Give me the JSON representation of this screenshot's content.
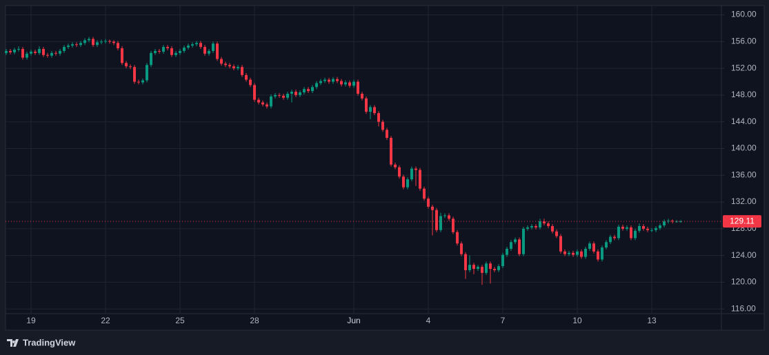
{
  "chart_data": {
    "type": "candlestick",
    "watermark": "TradingView",
    "categories": [
      null,
      null,
      null,
      null,
      null,
      null,
      "19",
      null,
      null,
      null,
      null,
      null,
      null,
      null,
      null,
      null,
      null,
      null,
      null,
      null,
      null,
      null,
      null,
      null,
      "22",
      null,
      null,
      null,
      null,
      null,
      null,
      null,
      null,
      null,
      null,
      null,
      null,
      null,
      null,
      null,
      null,
      null,
      "25",
      null,
      null,
      null,
      null,
      null,
      null,
      null,
      null,
      null,
      null,
      null,
      null,
      null,
      null,
      null,
      null,
      null,
      "28",
      null,
      null,
      null,
      null,
      null,
      null,
      null,
      null,
      null,
      null,
      null,
      null,
      null,
      null,
      null,
      null,
      null,
      null,
      null,
      null,
      null,
      null,
      null,
      "Jun",
      null,
      null,
      null,
      null,
      null,
      null,
      null,
      null,
      null,
      null,
      null,
      null,
      null,
      null,
      null,
      null,
      null,
      "4",
      null,
      null,
      null,
      null,
      null,
      null,
      null,
      null,
      null,
      null,
      null,
      null,
      null,
      null,
      null,
      null,
      null,
      "7",
      null,
      null,
      null,
      null,
      null,
      null,
      null,
      null,
      null,
      null,
      null,
      null,
      null,
      null,
      null,
      null,
      null,
      "10",
      null,
      null,
      null,
      null,
      null,
      null,
      null,
      null,
      null,
      null,
      null,
      null,
      null,
      null,
      null,
      null,
      null,
      "13",
      null,
      null,
      null,
      null,
      null,
      null,
      null
    ],
    "series": [
      {
        "up_color": "#089981",
        "down_color": "#f23645",
        "open": [
          154.3,
          154.6,
          154.4,
          154.8,
          154.9,
          153.6,
          154.2,
          154.5,
          154.3,
          154.9,
          154.0,
          153.9,
          154.3,
          154.2,
          154.6,
          155.2,
          155.4,
          155.6,
          155.5,
          155.8,
          156.2,
          156.4,
          155.5,
          155.9,
          156.0,
          156.1,
          156.0,
          155.8,
          155.0,
          152.8,
          152.3,
          152.2,
          150.0,
          149.9,
          150.2,
          152.5,
          154.3,
          154.6,
          154.5,
          155.2,
          155.0,
          154.0,
          154.3,
          154.6,
          155.1,
          155.4,
          155.6,
          155.8,
          155.2,
          154.2,
          154.6,
          155.7,
          153.4,
          152.7,
          152.5,
          152.3,
          152.0,
          152.2,
          151.0,
          150.3,
          149.5,
          147.3,
          146.9,
          146.6,
          146.3,
          147.8,
          148.0,
          147.9,
          147.6,
          148.2,
          148.5,
          148.0,
          148.4,
          148.9,
          148.6,
          149.2,
          149.8,
          150.1,
          150.3,
          150.0,
          150.4,
          150.1,
          149.6,
          149.9,
          149.4,
          150.0,
          148.2,
          147.5,
          145.5,
          146.2,
          145.3,
          144.0,
          142.8,
          141.6,
          137.6,
          137.2,
          135.8,
          134.2,
          135.4,
          137.0,
          136.8,
          134.0,
          132.5,
          131.3,
          130.8,
          127.8,
          129.9,
          130.0,
          129.5,
          127.5,
          125.8,
          124.2,
          121.8,
          122.6,
          122.0,
          122.3,
          121.4,
          122.8,
          122.0,
          121.8,
          122.4,
          124.1,
          125.0,
          126.0,
          126.4,
          124.2,
          128.0,
          128.2,
          128.4,
          128.2,
          129.1,
          128.8,
          128.4,
          127.6,
          126.9,
          124.6,
          124.2,
          124.4,
          124.1,
          124.6,
          123.8,
          125.0,
          125.8,
          124.6,
          123.4,
          125.2,
          126.0,
          126.8,
          126.6,
          128.3,
          128.0,
          128.2,
          126.6,
          127.7,
          128.4,
          128.0,
          127.8,
          127.8,
          128.1,
          128.5,
          129.1,
          129.2,
          129.1,
          129.1
        ],
        "high": [
          154.9,
          154.9,
          155.1,
          155.3,
          155.2,
          154.5,
          154.8,
          154.8,
          155.3,
          155.2,
          154.3,
          154.6,
          154.6,
          154.9,
          155.5,
          155.7,
          155.9,
          155.9,
          156.1,
          156.5,
          156.7,
          156.7,
          156.2,
          156.3,
          156.4,
          156.3,
          156.2,
          156.1,
          155.3,
          153.1,
          152.6,
          152.5,
          150.3,
          150.5,
          152.8,
          154.6,
          154.9,
          154.9,
          155.5,
          155.5,
          155.3,
          154.6,
          154.9,
          155.4,
          155.7,
          155.9,
          156.1,
          156.1,
          155.5,
          154.9,
          156.0,
          156.0,
          153.7,
          153.0,
          152.8,
          152.6,
          152.5,
          152.5,
          151.3,
          150.6,
          149.8,
          147.6,
          147.2,
          146.9,
          148.1,
          148.3,
          148.3,
          148.2,
          148.5,
          148.8,
          148.8,
          148.7,
          149.2,
          149.2,
          149.5,
          150.1,
          150.4,
          150.6,
          150.6,
          150.7,
          150.7,
          150.4,
          150.2,
          150.2,
          150.3,
          150.3,
          148.5,
          147.8,
          146.5,
          146.5,
          145.6,
          144.3,
          143.1,
          141.9,
          137.9,
          137.5,
          136.1,
          135.7,
          137.3,
          137.3,
          137.1,
          134.3,
          132.8,
          131.6,
          131.1,
          130.4,
          130.3,
          130.3,
          129.8,
          127.8,
          126.1,
          124.5,
          124.0,
          122.9,
          122.6,
          122.6,
          123.1,
          123.1,
          122.3,
          122.7,
          124.4,
          125.3,
          126.3,
          126.7,
          126.7,
          128.3,
          128.5,
          128.7,
          128.7,
          129.5,
          129.5,
          129.1,
          128.7,
          127.9,
          127.2,
          124.9,
          124.7,
          124.7,
          124.9,
          124.9,
          125.3,
          126.1,
          126.1,
          124.9,
          125.5,
          126.3,
          127.1,
          127.1,
          128.6,
          128.6,
          128.5,
          128.5,
          128.0,
          128.8,
          128.7,
          128.3,
          128.1,
          128.4,
          128.8,
          129.4,
          129.5,
          129.4,
          129.3,
          129.3
        ],
        "low": [
          154.0,
          154.1,
          154.1,
          154.5,
          153.3,
          153.3,
          153.9,
          154.0,
          154.0,
          153.7,
          153.6,
          153.6,
          153.9,
          153.9,
          154.3,
          154.9,
          155.1,
          155.2,
          155.2,
          155.5,
          155.9,
          155.2,
          155.2,
          155.6,
          155.7,
          155.7,
          155.5,
          154.7,
          152.5,
          152.0,
          151.9,
          149.7,
          149.6,
          149.6,
          149.9,
          152.2,
          154.0,
          154.2,
          154.2,
          154.7,
          153.7,
          153.7,
          154.0,
          154.3,
          154.8,
          155.1,
          155.3,
          154.9,
          153.9,
          153.9,
          154.3,
          153.1,
          152.4,
          152.2,
          152.0,
          151.7,
          151.7,
          150.7,
          150.0,
          149.2,
          147.0,
          146.6,
          146.3,
          146.0,
          146.0,
          147.5,
          147.6,
          147.3,
          147.3,
          146.9,
          147.7,
          147.7,
          148.1,
          148.3,
          148.3,
          148.9,
          149.5,
          149.8,
          149.7,
          149.7,
          149.8,
          149.3,
          149.3,
          149.1,
          149.1,
          147.9,
          147.2,
          145.2,
          144.4,
          145.0,
          143.3,
          142.5,
          141.3,
          137.3,
          136.9,
          135.5,
          133.9,
          133.9,
          135.1,
          134.4,
          133.7,
          132.2,
          131.0,
          127.0,
          127.5,
          127.5,
          129.6,
          129.2,
          127.2,
          125.5,
          123.9,
          120.5,
          121.5,
          121.2,
          121.7,
          119.6,
          121.1,
          119.8,
          121.5,
          121.5,
          122.1,
          123.8,
          124.7,
          125.7,
          123.9,
          123.9,
          127.7,
          127.9,
          127.9,
          127.9,
          128.5,
          128.1,
          127.3,
          126.6,
          124.3,
          123.9,
          123.9,
          123.8,
          123.8,
          123.5,
          123.5,
          124.7,
          124.3,
          123.1,
          123.1,
          124.9,
          125.7,
          126.3,
          126.3,
          127.7,
          127.7,
          126.3,
          126.3,
          127.4,
          127.7,
          127.5,
          127.5,
          127.5,
          127.8,
          128.2,
          128.8,
          128.8,
          128.9,
          128.9
        ],
        "close": [
          154.6,
          154.4,
          154.8,
          154.9,
          153.6,
          154.2,
          154.5,
          154.3,
          154.9,
          154.0,
          153.9,
          154.3,
          154.2,
          154.6,
          155.2,
          155.4,
          155.6,
          155.5,
          155.8,
          156.2,
          156.4,
          155.5,
          155.9,
          156.0,
          156.1,
          156.0,
          155.8,
          155.0,
          152.8,
          152.3,
          152.2,
          150.0,
          149.9,
          150.2,
          152.5,
          154.3,
          154.6,
          154.5,
          155.2,
          155.0,
          154.0,
          154.3,
          154.6,
          155.1,
          155.4,
          155.6,
          155.8,
          155.2,
          154.2,
          154.6,
          155.7,
          153.4,
          152.7,
          152.5,
          152.3,
          152.0,
          152.2,
          151.0,
          150.3,
          149.5,
          147.3,
          146.9,
          146.6,
          146.3,
          147.8,
          148.0,
          147.9,
          147.6,
          148.2,
          148.5,
          148.0,
          148.4,
          148.9,
          148.6,
          149.2,
          149.8,
          150.1,
          150.3,
          150.0,
          150.4,
          150.1,
          149.6,
          149.9,
          149.4,
          150.0,
          148.2,
          147.5,
          145.5,
          146.2,
          145.3,
          144.0,
          142.8,
          141.6,
          137.6,
          137.2,
          135.8,
          134.2,
          135.4,
          137.0,
          136.8,
          134.0,
          132.5,
          131.3,
          130.8,
          127.8,
          129.9,
          130.0,
          129.5,
          127.5,
          125.8,
          124.2,
          121.8,
          122.6,
          122.0,
          122.3,
          121.4,
          122.8,
          122.0,
          121.8,
          122.4,
          124.1,
          125.0,
          126.0,
          126.4,
          124.2,
          128.0,
          128.2,
          128.4,
          128.2,
          129.1,
          128.8,
          128.4,
          127.6,
          126.9,
          124.6,
          124.2,
          124.4,
          124.1,
          124.6,
          123.8,
          125.0,
          125.8,
          124.6,
          123.4,
          125.2,
          126.0,
          126.8,
          126.6,
          128.3,
          128.0,
          128.2,
          126.6,
          127.7,
          128.4,
          128.0,
          127.8,
          127.8,
          128.1,
          128.5,
          129.1,
          129.2,
          129.1,
          129.1,
          129.11
        ]
      }
    ],
    "ylim": [
      115.3,
      161.4
    ],
    "yticks": [
      {
        "value": 116,
        "label": "116.00"
      },
      {
        "value": 120,
        "label": "120.00"
      },
      {
        "value": 124,
        "label": "124.00"
      },
      {
        "value": 128,
        "label": "128.00"
      },
      {
        "value": 132,
        "label": "132.00"
      },
      {
        "value": 136,
        "label": "136.00"
      },
      {
        "value": 140,
        "label": "140.00"
      },
      {
        "value": 144,
        "label": "144.00"
      },
      {
        "value": 148,
        "label": "148.00"
      },
      {
        "value": 152,
        "label": "152.00"
      },
      {
        "value": 156,
        "label": "156.00"
      },
      {
        "value": 160,
        "label": "160.00"
      }
    ],
    "grid": true,
    "axis_side": "right",
    "last_price_color": "#f23645"
  }
}
